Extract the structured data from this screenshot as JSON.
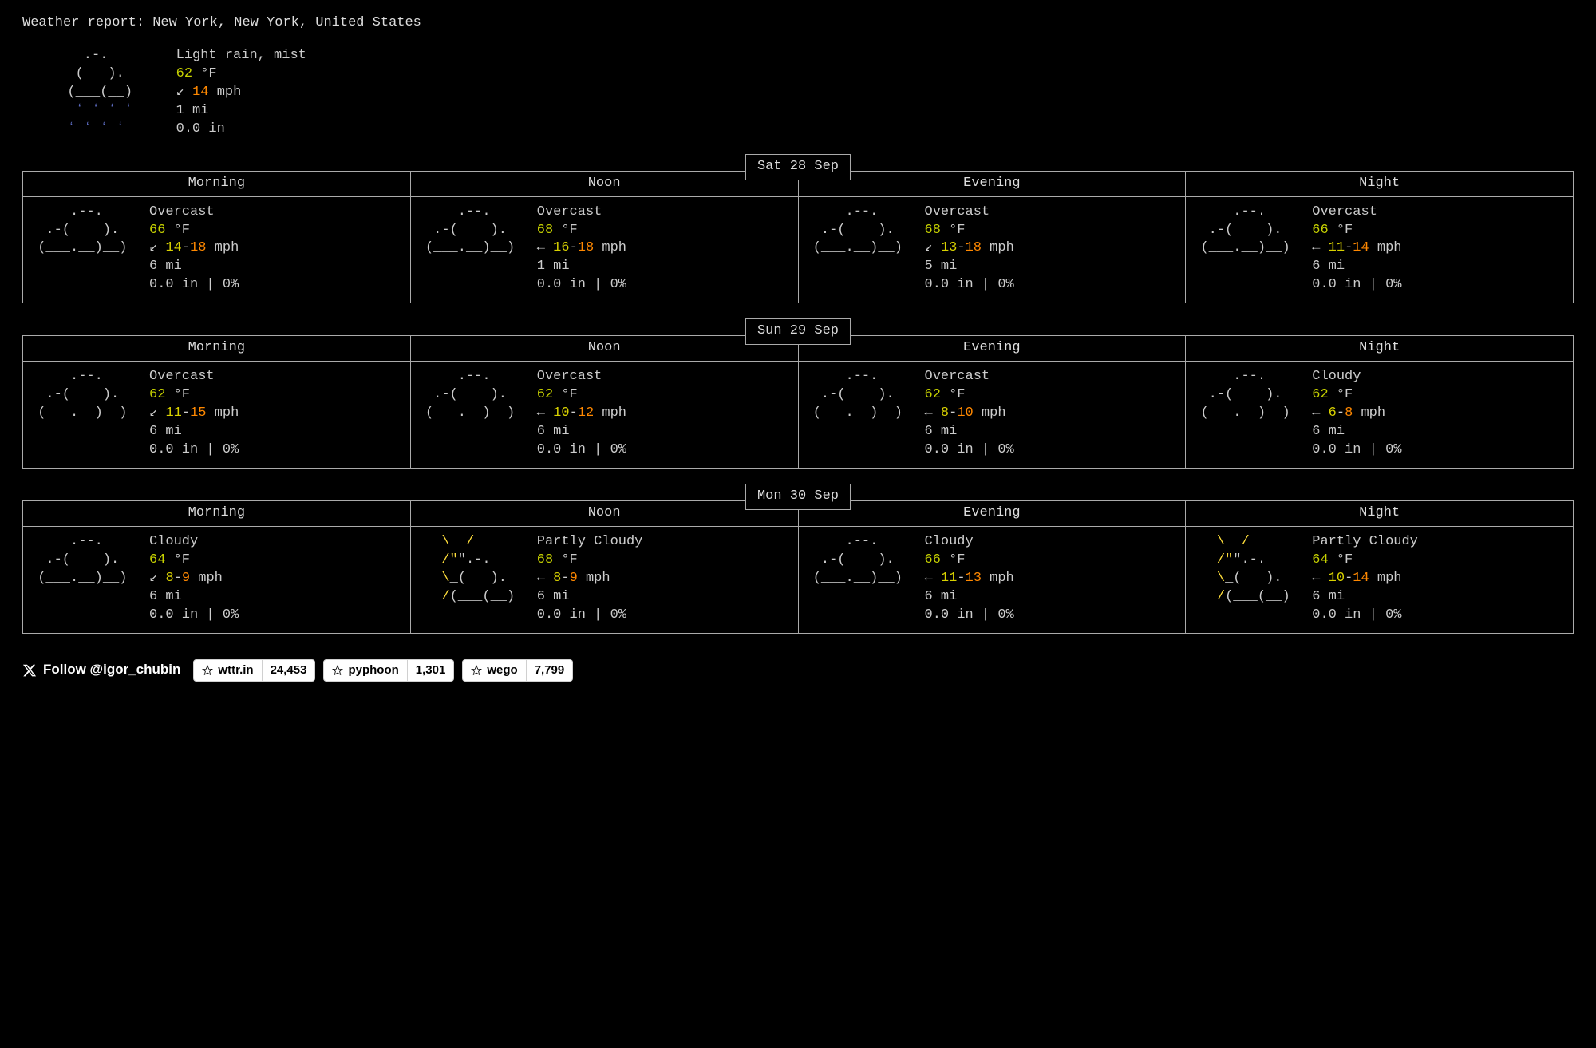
{
  "header": "Weather report: New York, New York, United States",
  "current": {
    "art": "rainy",
    "condition": "Light rain, mist",
    "temp": "62",
    "temp_unit": "°F",
    "wind_arrow": "↙",
    "wind_lo": "14",
    "wind_hi": "",
    "wind_unit": "mph",
    "visibility": "1 mi",
    "precip": "0.0 in"
  },
  "days": [
    {
      "date": "Sat 28 Sep",
      "periods": [
        {
          "name": "Morning",
          "art": "overcast",
          "condition": "Overcast",
          "temp": "66",
          "temp_unit": "°F",
          "wind_arrow": "↙",
          "wind_lo": "14",
          "wind_hi": "18",
          "wind_unit": "mph",
          "visibility": "6 mi",
          "precip": "0.0 in | 0%"
        },
        {
          "name": "Noon",
          "art": "overcast",
          "condition": "Overcast",
          "temp": "68",
          "temp_unit": "°F",
          "wind_arrow": "←",
          "wind_lo": "16",
          "wind_hi": "18",
          "wind_unit": "mph",
          "visibility": "1 mi",
          "precip": "0.0 in | 0%"
        },
        {
          "name": "Evening",
          "art": "overcast",
          "condition": "Overcast",
          "temp": "68",
          "temp_unit": "°F",
          "wind_arrow": "↙",
          "wind_lo": "13",
          "wind_hi": "18",
          "wind_unit": "mph",
          "visibility": "5 mi",
          "precip": "0.0 in | 0%"
        },
        {
          "name": "Night",
          "art": "overcast",
          "condition": "Overcast",
          "temp": "66",
          "temp_unit": "°F",
          "wind_arrow": "←",
          "wind_lo": "11",
          "wind_hi": "14",
          "wind_unit": "mph",
          "visibility": "6 mi",
          "precip": "0.0 in | 0%"
        }
      ]
    },
    {
      "date": "Sun 29 Sep",
      "periods": [
        {
          "name": "Morning",
          "art": "overcast",
          "condition": "Overcast",
          "temp": "62",
          "temp_unit": "°F",
          "wind_arrow": "↙",
          "wind_lo": "11",
          "wind_hi": "15",
          "wind_unit": "mph",
          "visibility": "6 mi",
          "precip": "0.0 in | 0%"
        },
        {
          "name": "Noon",
          "art": "overcast",
          "condition": "Overcast",
          "temp": "62",
          "temp_unit": "°F",
          "wind_arrow": "←",
          "wind_lo": "10",
          "wind_hi": "12",
          "wind_unit": "mph",
          "visibility": "6 mi",
          "precip": "0.0 in | 0%"
        },
        {
          "name": "Evening",
          "art": "overcast",
          "condition": "Overcast",
          "temp": "62",
          "temp_unit": "°F",
          "wind_arrow": "←",
          "wind_lo": "8",
          "wind_hi": "10",
          "wind_unit": "mph",
          "visibility": "6 mi",
          "precip": "0.0 in | 0%"
        },
        {
          "name": "Night",
          "art": "overcast",
          "condition": "Cloudy",
          "temp": "62",
          "temp_unit": "°F",
          "wind_arrow": "←",
          "wind_lo": "6",
          "wind_hi": "8",
          "wind_unit": "mph",
          "visibility": "6 mi",
          "precip": "0.0 in | 0%"
        }
      ]
    },
    {
      "date": "Mon 30 Sep",
      "periods": [
        {
          "name": "Morning",
          "art": "overcast",
          "condition": "Cloudy",
          "temp": "64",
          "temp_unit": "°F",
          "wind_arrow": "↙",
          "wind_lo": "8",
          "wind_hi": "9",
          "wind_unit": "mph",
          "visibility": "6 mi",
          "precip": "0.0 in | 0%"
        },
        {
          "name": "Noon",
          "art": "partly_cloudy",
          "condition": "Partly Cloudy",
          "temp": "68",
          "temp_unit": "°F",
          "wind_arrow": "←",
          "wind_lo": "8",
          "wind_hi": "9",
          "wind_unit": "mph",
          "visibility": "6 mi",
          "precip": "0.0 in | 0%"
        },
        {
          "name": "Evening",
          "art": "overcast",
          "condition": "Cloudy",
          "temp": "66",
          "temp_unit": "°F",
          "wind_arrow": "←",
          "wind_lo": "11",
          "wind_hi": "13",
          "wind_unit": "mph",
          "visibility": "6 mi",
          "precip": "0.0 in | 0%"
        },
        {
          "name": "Night",
          "art": "partly_cloudy",
          "condition": "Partly Cloudy",
          "temp": "64",
          "temp_unit": "°F",
          "wind_arrow": "←",
          "wind_lo": "10",
          "wind_hi": "14",
          "wind_unit": "mph",
          "visibility": "6 mi",
          "precip": "0.0 in | 0%"
        }
      ]
    }
  ],
  "footer": {
    "follow_label": "Follow @igor_chubin",
    "repos": [
      {
        "name": "wttr.in",
        "stars": "24,453"
      },
      {
        "name": "pyphoon",
        "stars": "1,301"
      },
      {
        "name": "wego",
        "stars": "7,799"
      }
    ]
  },
  "ascii": {
    "overcast": "     .--.    \n  .-(    ).  \n (___.__)__) ",
    "partly_cloudy_plain": "   \\  /      \n _ /\"\".-.    \n   \\_(   ).  \n   /(___(__) ",
    "rainy_plain": "    .-.      \n   (   ).    \n  (___(__)   ",
    "rainy_drops": "   ʻ ʻ ʻ ʻ   \n  ʻ ʻ ʻ ʻ    "
  },
  "colors": {
    "bg": "#000000",
    "fg": "#cccccc",
    "border": "#aaaaaa",
    "temp": "#c6d100",
    "wind_lo": "#d8d100",
    "wind_hi": "#ff8800",
    "rain_drops": "#5c6bc0",
    "sun": "#ffde3b"
  }
}
